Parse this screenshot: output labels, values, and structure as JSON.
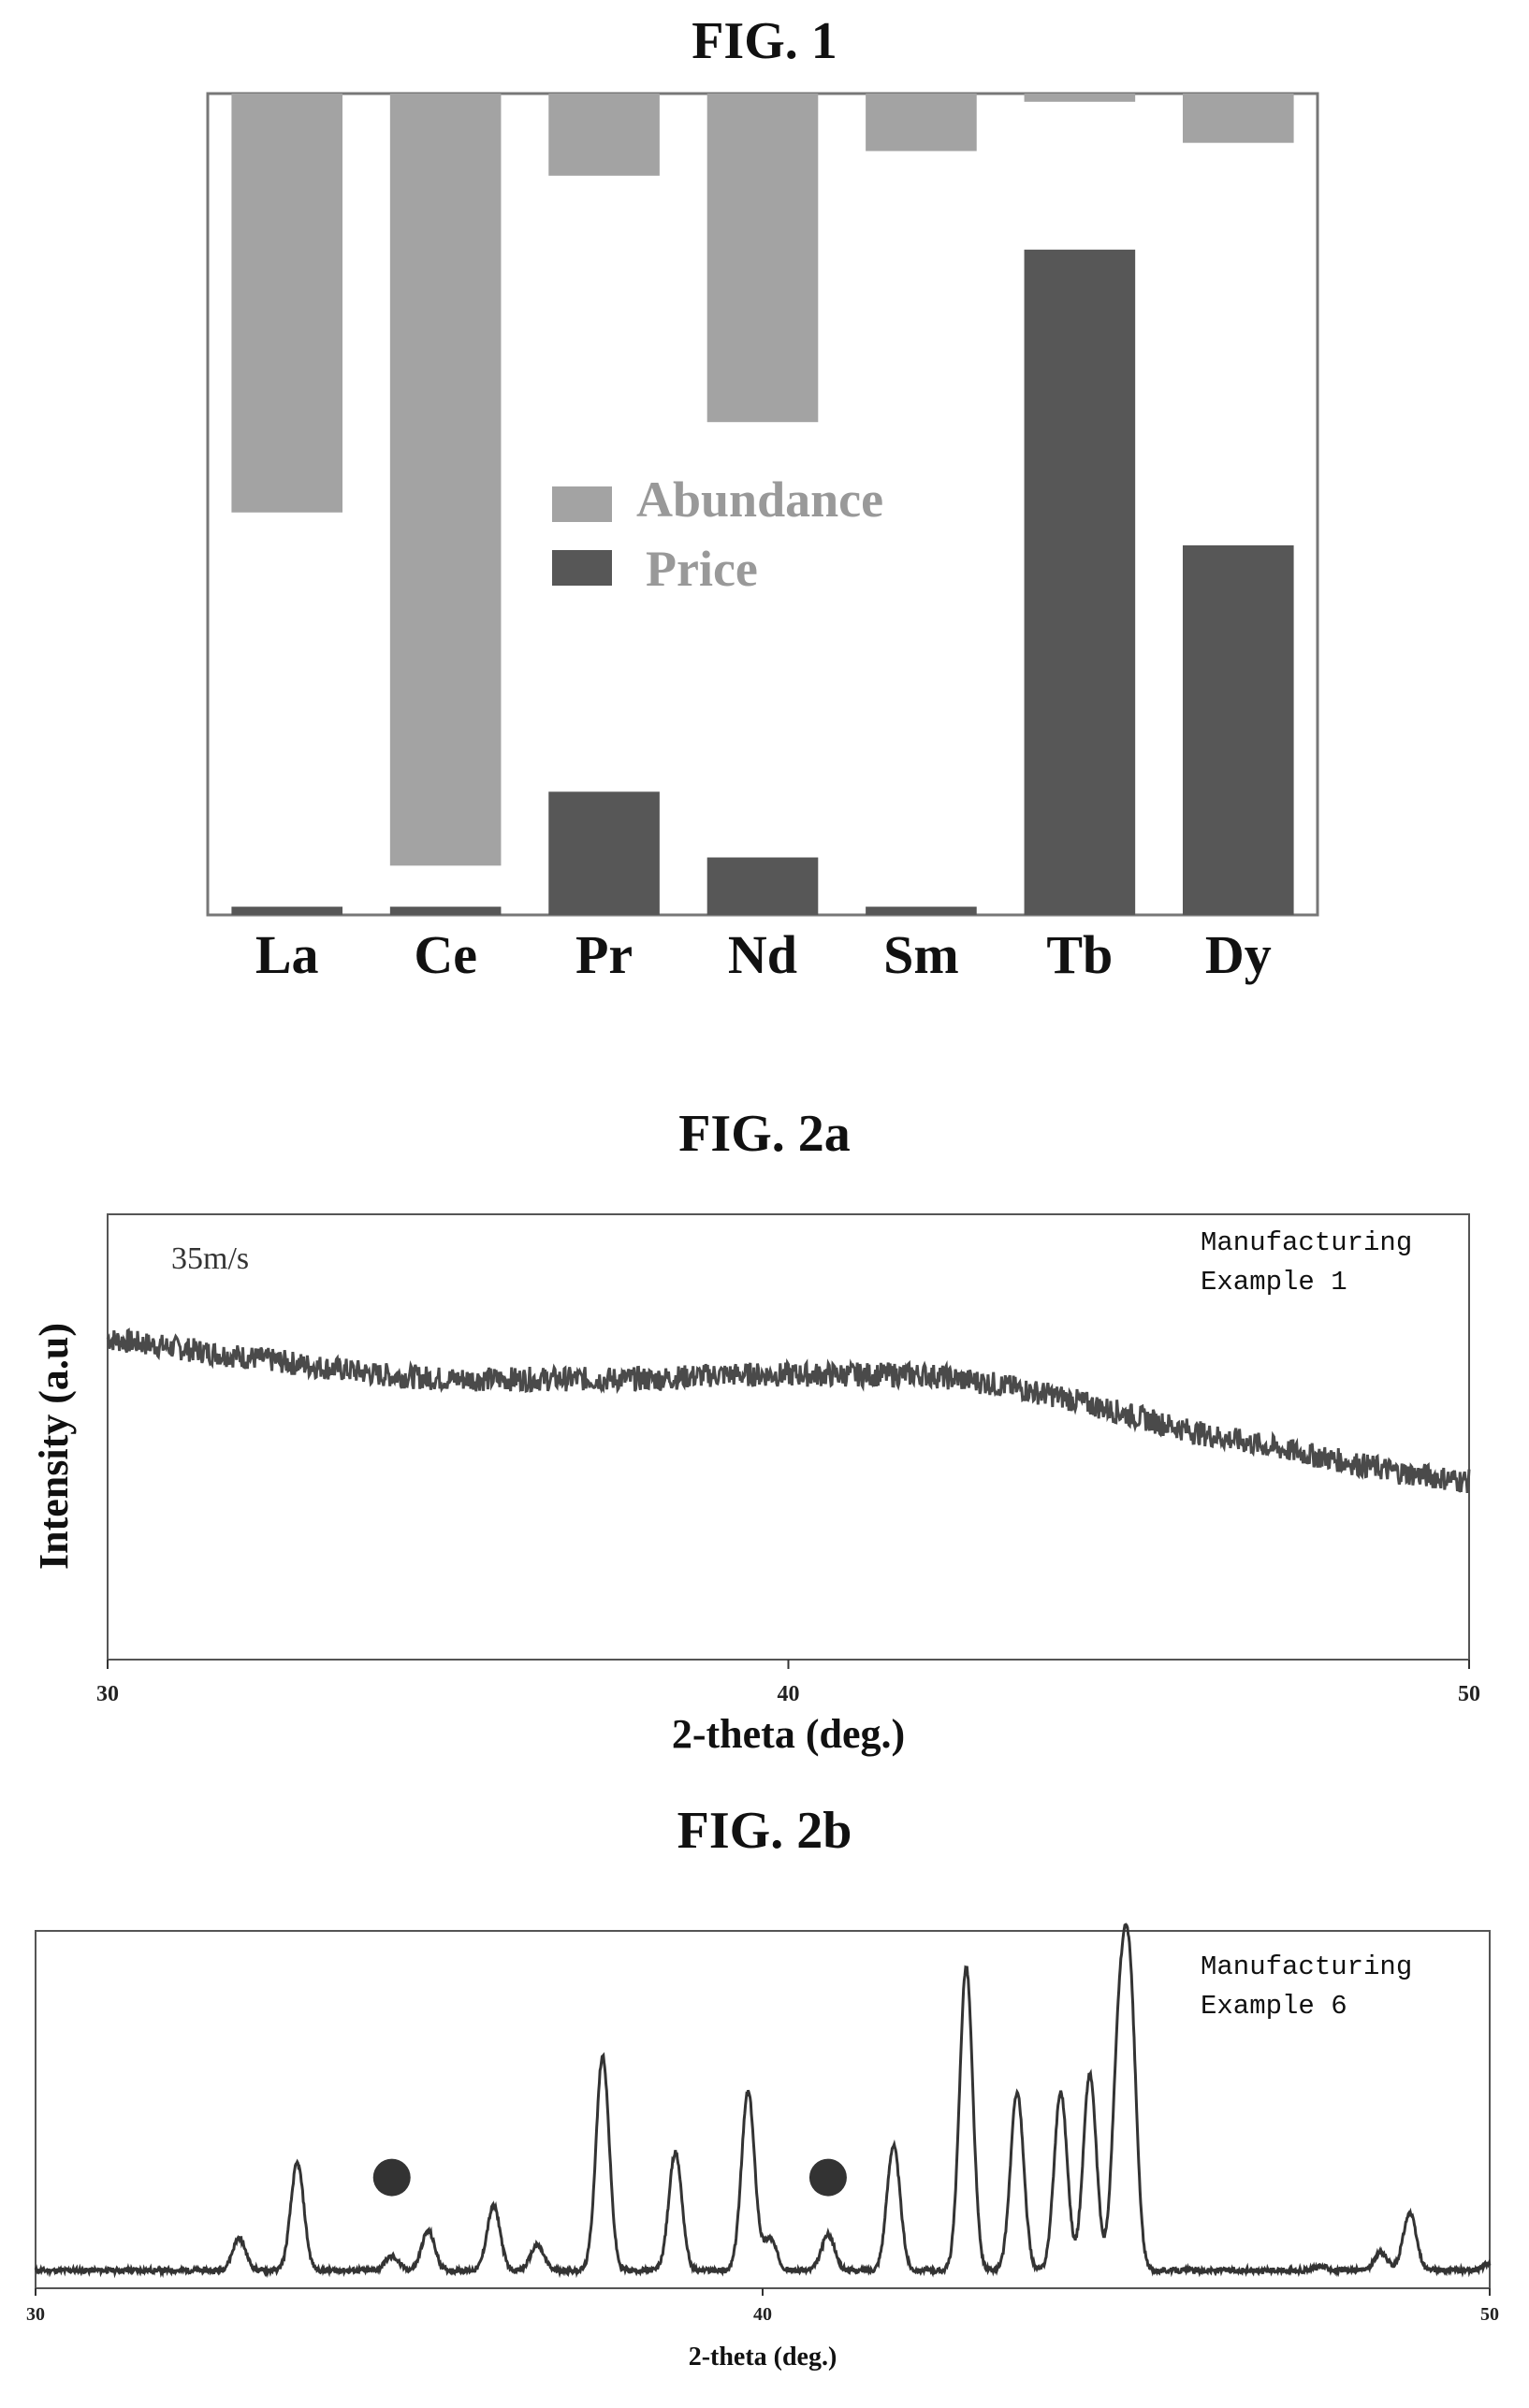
{
  "chart_data": [
    {
      "type": "bar",
      "title": "FIG. 1",
      "categories": [
        "La",
        "Ce",
        "Pr",
        "Nd",
        "Sm",
        "Tb",
        "Dy"
      ],
      "series": [
        {
          "name": "Abundance",
          "direction": "down",
          "values": [
            51,
            94,
            10,
            40,
            7,
            1,
            6
          ]
        },
        {
          "name": "Price",
          "direction": "up",
          "values": [
            1,
            1,
            15,
            7,
            1,
            81,
            45
          ]
        }
      ],
      "ylim": [
        0,
        100
      ],
      "legend": "center",
      "colors": {
        "abundance": "#a3a3a3",
        "price": "#575757"
      }
    },
    {
      "type": "line",
      "title": "FIG. 2a",
      "xlabel": "2-theta (deg.)",
      "ylabel": "Intensity (a.u)",
      "xlim": [
        30,
        50
      ],
      "xticks": [
        "30",
        "40",
        "50"
      ],
      "annotation": "35m/s",
      "legend_lines": [
        "Manufacturing",
        "Example 1"
      ],
      "ylim": [
        0,
        100
      ],
      "series": [
        {
          "x": [
            30,
            31,
            32,
            33,
            34,
            35,
            36,
            37,
            38,
            39,
            40,
            41,
            42,
            43,
            44,
            45,
            46,
            47,
            48,
            49,
            50
          ],
          "y": [
            72,
            70,
            68,
            66,
            64,
            63,
            63,
            63,
            63,
            64,
            64,
            64,
            64,
            62,
            59,
            55,
            51,
            48,
            45,
            42,
            40
          ]
        }
      ]
    },
    {
      "type": "line",
      "title": "FIG. 2b",
      "xlabel": "2-theta (deg.)",
      "xlim": [
        30,
        50
      ],
      "xticks": [
        "30",
        "40",
        "50"
      ],
      "legend_lines": [
        "Manufacturing",
        "Example 6"
      ],
      "ylim": [
        0,
        100
      ],
      "baseline": 5,
      "peaks": [
        [
          32.8,
          14
        ],
        [
          33.6,
          35
        ],
        [
          34.9,
          9
        ],
        [
          35.4,
          16
        ],
        [
          36.3,
          23
        ],
        [
          36.9,
          12
        ],
        [
          37.8,
          65
        ],
        [
          38.8,
          38
        ],
        [
          39.8,
          55
        ],
        [
          40.1,
          14
        ],
        [
          40.9,
          15
        ],
        [
          41.8,
          40
        ],
        [
          42.8,
          90
        ],
        [
          43.5,
          55
        ],
        [
          44.1,
          55
        ],
        [
          44.5,
          60
        ],
        [
          44.9,
          65
        ],
        [
          45.05,
          80
        ],
        [
          47.7,
          6
        ],
        [
          48.5,
          10
        ],
        [
          48.9,
          21
        ],
        [
          50,
          7
        ]
      ],
      "markers_x": [
        34.9,
        40.9
      ]
    }
  ]
}
